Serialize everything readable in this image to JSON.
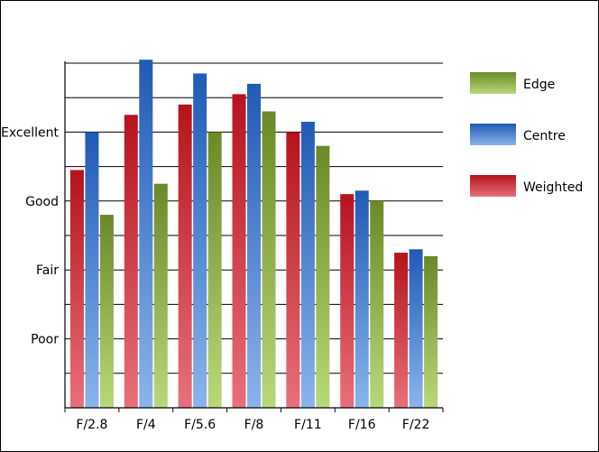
{
  "chart_data": {
    "type": "bar",
    "title": "",
    "xlabel": "",
    "ylabel": "",
    "ylim": [
      0,
      10
    ],
    "grid": true,
    "legend_position": "right",
    "yticks": [
      {
        "value": 2,
        "label": "Poor"
      },
      {
        "value": 4,
        "label": "Fair"
      },
      {
        "value": 6,
        "label": "Good"
      },
      {
        "value": 8,
        "label": "Excellent"
      }
    ],
    "categories": [
      "F/2.8",
      "F/4",
      "F/5.6",
      "F/8",
      "F/11",
      "F/16",
      "F/22"
    ],
    "series": [
      {
        "name": "Weighted",
        "values": [
          6.9,
          8.5,
          8.8,
          9.1,
          8.0,
          6.2,
          4.5
        ],
        "color_top": "#b5131c",
        "color_bottom": "#e8707a"
      },
      {
        "name": "Centre",
        "values": [
          8.0,
          10.1,
          9.7,
          9.4,
          8.3,
          6.3,
          4.6
        ],
        "color_top": "#1f5bb5",
        "color_bottom": "#8ab4ec"
      },
      {
        "name": "Edge",
        "values": [
          5.6,
          6.5,
          8.0,
          8.6,
          7.6,
          6.0,
          4.4
        ],
        "color_top": "#6a8a28",
        "color_bottom": "#b8d87a"
      }
    ],
    "legend_order": [
      "Edge",
      "Centre",
      "Weighted"
    ]
  }
}
